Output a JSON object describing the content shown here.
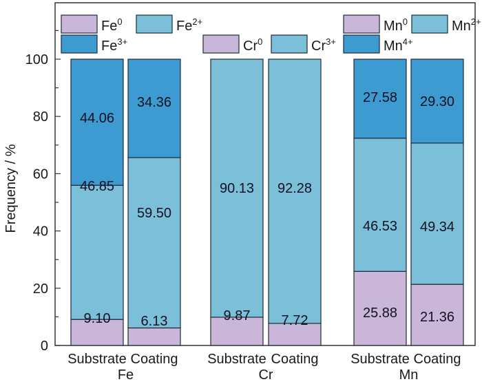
{
  "chart_data": {
    "type": "bar",
    "stacked": true,
    "title": "",
    "xlabel": "",
    "ylabel": "Frequency / %",
    "ylim": [
      0,
      100
    ],
    "yticks": [
      0,
      20,
      40,
      60,
      80,
      100
    ],
    "grid": false,
    "groups": [
      {
        "element": "Fe",
        "bars": [
          {
            "label": "Substrate",
            "segments": [
              {
                "species": "Fe",
                "sup": "0",
                "value": 9.1,
                "label": "9.10"
              },
              {
                "species": "Fe",
                "sup": "2+",
                "value": 46.85,
                "label": "46.85"
              },
              {
                "species": "Fe",
                "sup": "3+",
                "value": 44.06,
                "label": "44.06"
              }
            ]
          },
          {
            "label": "Coating",
            "segments": [
              {
                "species": "Fe",
                "sup": "0",
                "value": 6.13,
                "label": "6.13"
              },
              {
                "species": "Fe",
                "sup": "2+",
                "value": 59.5,
                "label": "59.50"
              },
              {
                "species": "Fe",
                "sup": "3+",
                "value": 34.36,
                "label": "34.36"
              }
            ]
          }
        ],
        "legend": [
          {
            "name": "Fe",
            "sup": "0",
            "state": "0"
          },
          {
            "name": "Fe",
            "sup": "2+",
            "state": "2+"
          },
          {
            "name": "Fe",
            "sup": "3+",
            "state": "3+"
          }
        ]
      },
      {
        "element": "Cr",
        "bars": [
          {
            "label": "Substrate",
            "segments": [
              {
                "species": "Cr",
                "sup": "0",
                "value": 9.87,
                "label": "9.87"
              },
              {
                "species": "Cr",
                "sup": "3+",
                "value": 90.13,
                "label": "90.13"
              }
            ]
          },
          {
            "label": "Coating",
            "segments": [
              {
                "species": "Cr",
                "sup": "0",
                "value": 7.72,
                "label": "7.72"
              },
              {
                "species": "Cr",
                "sup": "3+",
                "value": 92.28,
                "label": "92.28"
              }
            ]
          }
        ],
        "legend": [
          {
            "name": "Cr",
            "sup": "0",
            "state": "0"
          },
          {
            "name": "Cr",
            "sup": "3+",
            "state": "2+"
          }
        ]
      },
      {
        "element": "Mn",
        "bars": [
          {
            "label": "Substrate",
            "segments": [
              {
                "species": "Mn",
                "sup": "0",
                "value": 25.88,
                "label": "25.88"
              },
              {
                "species": "Mn",
                "sup": "2+",
                "value": 46.53,
                "label": "46.53"
              },
              {
                "species": "Mn",
                "sup": "4+",
                "value": 27.58,
                "label": "27.58"
              }
            ]
          },
          {
            "label": "Coating",
            "segments": [
              {
                "species": "Mn",
                "sup": "0",
                "value": 21.36,
                "label": "21.36"
              },
              {
                "species": "Mn",
                "sup": "2+",
                "value": 49.34,
                "label": "49.34"
              },
              {
                "species": "Mn",
                "sup": "4+",
                "value": 29.3,
                "label": "29.30"
              }
            ]
          }
        ],
        "legend": [
          {
            "name": "Mn",
            "sup": "0",
            "state": "0"
          },
          {
            "name": "Mn",
            "sup": "2+",
            "state": "2+"
          },
          {
            "name": "Mn",
            "sup": "4+",
            "state": "3+"
          }
        ]
      }
    ],
    "colors": {
      "zero": "#c9b6d8",
      "low": "#7bbfd9",
      "high": "#3d9bd1",
      "outline": "#1e2a3a",
      "axis": "#333333"
    },
    "legend_placement": "top"
  }
}
